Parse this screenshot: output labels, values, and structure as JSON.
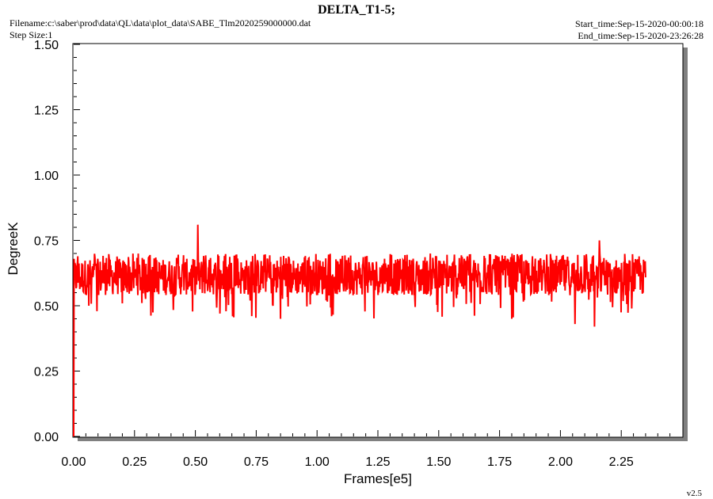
{
  "header": {
    "title": "DELTA_T1-5;",
    "filename": "Filename:c:\\saber\\prod\\data\\QL\\data\\plot_data\\SABE_Tlm2020259000000.dat",
    "step_size": "Step Size:1",
    "start_time": "Start_time:Sep-15-2020-00:00:18",
    "end_time": "End_time:Sep-15-2020-23:26:28",
    "version": "v2.5"
  },
  "colors": {
    "series": "#ff0000",
    "shadow": "#808080",
    "frame": "#000000",
    "background": "#ffffff"
  },
  "chart_data": {
    "type": "line",
    "title": "DELTA_T1-5;",
    "xlabel": "Frames[e5]",
    "ylabel": "DegreeK",
    "xlim": [
      0.0,
      2.5
    ],
    "ylim": [
      0.0,
      1.5
    ],
    "x_ticks": [
      "0.00",
      "0.25",
      "0.50",
      "0.75",
      "1.00",
      "1.25",
      "1.50",
      "1.75",
      "2.00",
      "2.25"
    ],
    "y_ticks": [
      "0.00",
      "0.25",
      "0.50",
      "0.75",
      "1.00",
      "1.25",
      "1.50"
    ],
    "grid": false,
    "series": [
      {
        "color": "#ff0000",
        "x_start": 0.0,
        "x_end": 2.35,
        "typical_range": [
          0.54,
          0.68
        ],
        "envelope_range": [
          0.45,
          0.7
        ],
        "spikes": [
          {
            "x": 0.0,
            "y": 0.0
          },
          {
            "x": 0.51,
            "y": 0.81
          },
          {
            "x": 0.85,
            "y": 0.45
          },
          {
            "x": 1.06,
            "y": 0.46
          },
          {
            "x": 1.8,
            "y": 0.45
          },
          {
            "x": 2.06,
            "y": 0.43
          },
          {
            "x": 2.14,
            "y": 0.42
          },
          {
            "x": 2.16,
            "y": 0.75
          }
        ]
      }
    ]
  }
}
